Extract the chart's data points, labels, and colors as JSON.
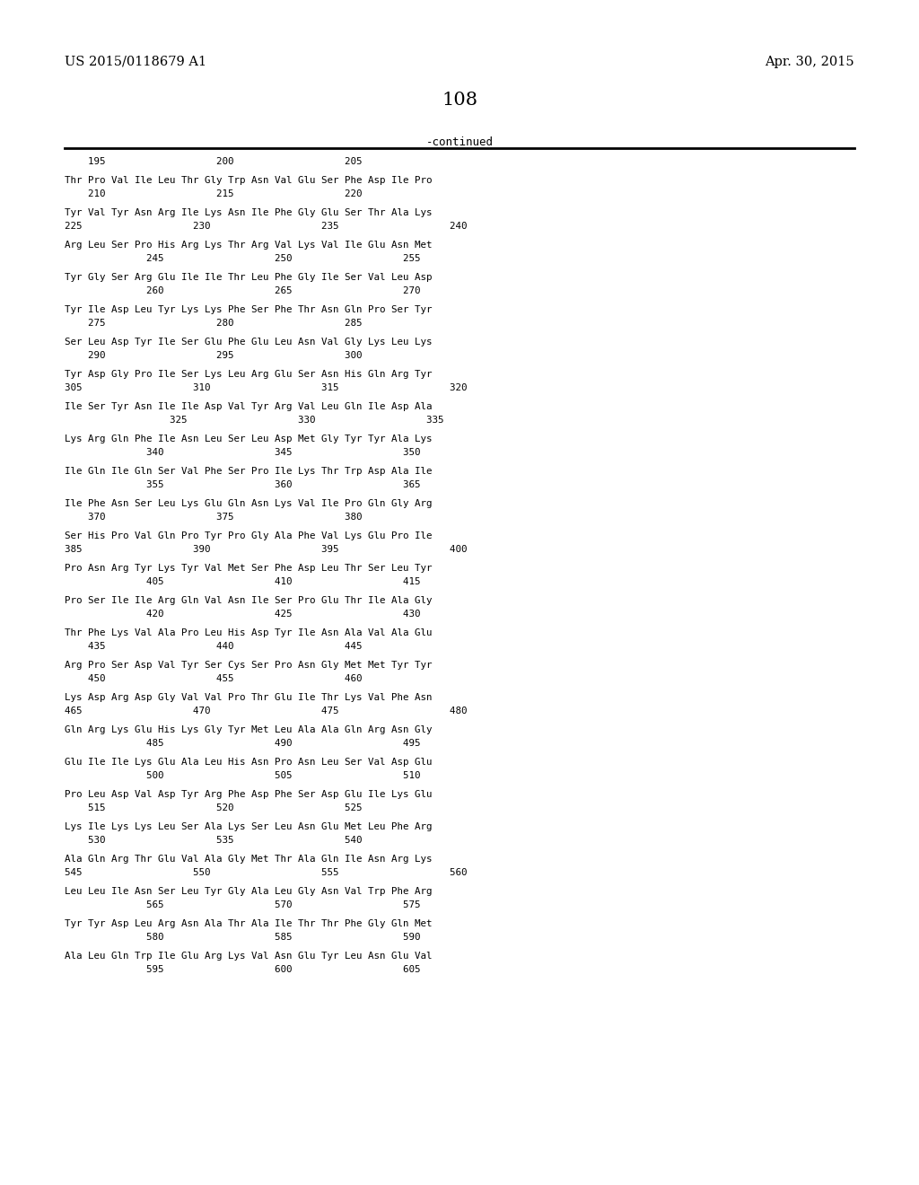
{
  "header_left": "US 2015/0118679 A1",
  "header_right": "Apr. 30, 2015",
  "page_number": "108",
  "continued_text": "-continued",
  "background_color": "#ffffff",
  "text_color": "#000000",
  "content_blocks": [
    [
      "    195                   200                   205",
      null
    ],
    [
      "Thr Pro Val Ile Leu Thr Gly Trp Asn Val Glu Ser Phe Asp Ile Pro",
      "    210                   215                   220"
    ],
    [
      "Tyr Val Tyr Asn Arg Ile Lys Asn Ile Phe Gly Glu Ser Thr Ala Lys",
      "225                   230                   235                   240"
    ],
    [
      "Arg Leu Ser Pro His Arg Lys Thr Arg Val Lys Val Ile Glu Asn Met",
      "              245                   250                   255"
    ],
    [
      "Tyr Gly Ser Arg Glu Ile Ile Thr Leu Phe Gly Ile Ser Val Leu Asp",
      "              260                   265                   270"
    ],
    [
      "Tyr Ile Asp Leu Tyr Lys Lys Phe Ser Phe Thr Asn Gln Pro Ser Tyr",
      "    275                   280                   285"
    ],
    [
      "Ser Leu Asp Tyr Ile Ser Glu Phe Glu Leu Asn Val Gly Lys Leu Lys",
      "    290                   295                   300"
    ],
    [
      "Tyr Asp Gly Pro Ile Ser Lys Leu Arg Glu Ser Asn His Gln Arg Tyr",
      "305                   310                   315                   320"
    ],
    [
      "Ile Ser Tyr Asn Ile Ile Asp Val Tyr Arg Val Leu Gln Ile Asp Ala",
      "                  325                   330                   335"
    ],
    [
      "Lys Arg Gln Phe Ile Asn Leu Ser Leu Asp Met Gly Tyr Tyr Ala Lys",
      "              340                   345                   350"
    ],
    [
      "Ile Gln Ile Gln Ser Val Phe Ser Pro Ile Lys Thr Trp Asp Ala Ile",
      "              355                   360                   365"
    ],
    [
      "Ile Phe Asn Ser Leu Lys Glu Gln Asn Lys Val Ile Pro Gln Gly Arg",
      "    370                   375                   380"
    ],
    [
      "Ser His Pro Val Gln Pro Tyr Pro Gly Ala Phe Val Lys Glu Pro Ile",
      "385                   390                   395                   400"
    ],
    [
      "Pro Asn Arg Tyr Lys Tyr Val Met Ser Phe Asp Leu Thr Ser Leu Tyr",
      "              405                   410                   415"
    ],
    [
      "Pro Ser Ile Ile Arg Gln Val Asn Ile Ser Pro Glu Thr Ile Ala Gly",
      "              420                   425                   430"
    ],
    [
      "Thr Phe Lys Val Ala Pro Leu His Asp Tyr Ile Asn Ala Val Ala Glu",
      "    435                   440                   445"
    ],
    [
      "Arg Pro Ser Asp Val Tyr Ser Cys Ser Pro Asn Gly Met Met Tyr Tyr",
      "    450                   455                   460"
    ],
    [
      "Lys Asp Arg Asp Gly Val Val Pro Thr Glu Ile Thr Lys Val Phe Asn",
      "465                   470                   475                   480"
    ],
    [
      "Gln Arg Lys Glu His Lys Gly Tyr Met Leu Ala Ala Gln Arg Asn Gly",
      "              485                   490                   495"
    ],
    [
      "Glu Ile Ile Lys Glu Ala Leu His Asn Pro Asn Leu Ser Val Asp Glu",
      "              500                   505                   510"
    ],
    [
      "Pro Leu Asp Val Asp Tyr Arg Phe Asp Phe Ser Asp Glu Ile Lys Glu",
      "    515                   520                   525"
    ],
    [
      "Lys Ile Lys Lys Leu Ser Ala Lys Ser Leu Asn Glu Met Leu Phe Arg",
      "    530                   535                   540"
    ],
    [
      "Ala Gln Arg Thr Glu Val Ala Gly Met Thr Ala Gln Ile Asn Arg Lys",
      "545                   550                   555                   560"
    ],
    [
      "Leu Leu Ile Asn Ser Leu Tyr Gly Ala Leu Gly Asn Val Trp Phe Arg",
      "              565                   570                   575"
    ],
    [
      "Tyr Tyr Asp Leu Arg Asn Ala Thr Ala Ile Thr Thr Phe Gly Gln Met",
      "              580                   585                   590"
    ],
    [
      "Ala Leu Gln Trp Ile Glu Arg Lys Val Asn Glu Tyr Leu Asn Glu Val",
      "              595                   600                   605"
    ]
  ]
}
